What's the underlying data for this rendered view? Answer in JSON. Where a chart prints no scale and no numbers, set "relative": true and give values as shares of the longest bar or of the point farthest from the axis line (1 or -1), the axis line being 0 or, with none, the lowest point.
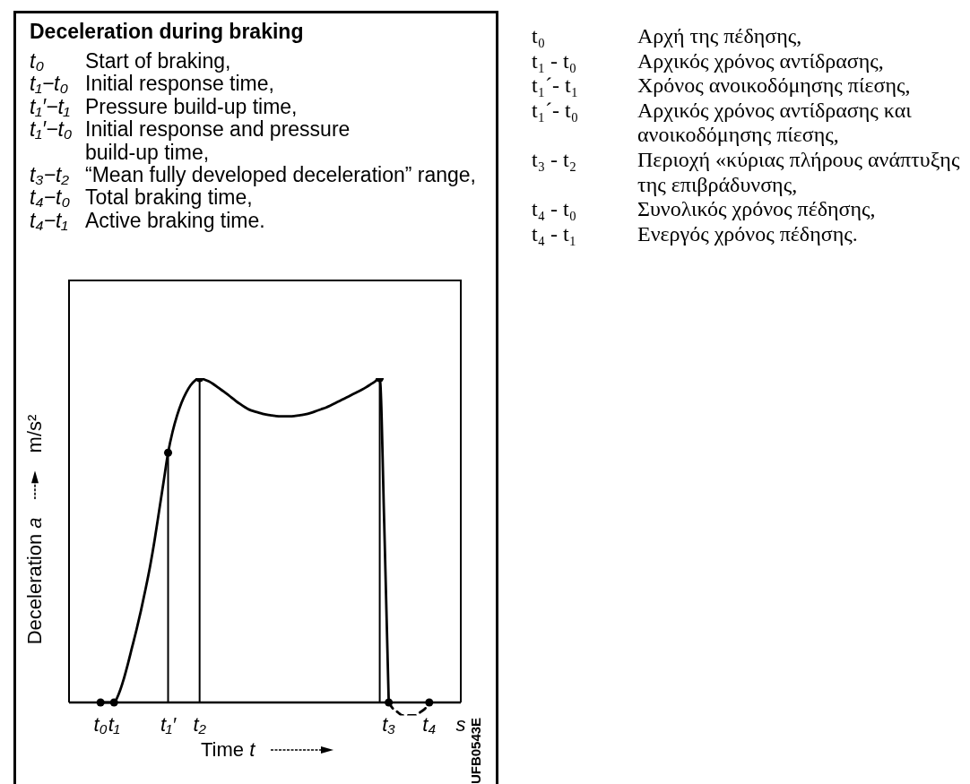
{
  "chart_data": {
    "type": "line",
    "relative": true,
    "title": "Deceleration during braking",
    "xlabel": "Time t",
    "ylabel": "Deceleration a",
    "categories": [
      null,
      null,
      null,
      null,
      null,
      null,
      null,
      "t₀",
      null,
      null,
      "t₁",
      null,
      null,
      null,
      null,
      null,
      null,
      null,
      null,
      null,
      null,
      null,
      "t₁′",
      null,
      null,
      null,
      null,
      null,
      null,
      "t₂",
      null,
      null,
      null,
      null,
      null,
      null,
      null,
      null,
      null,
      null,
      null,
      null,
      null,
      null,
      null,
      null,
      null,
      null,
      null,
      null,
      null,
      null,
      null,
      null,
      null,
      null,
      null,
      null,
      null,
      null,
      null,
      null,
      null,
      null,
      null,
      null,
      null,
      null,
      null,
      null,
      null,
      "t₃",
      null,
      null,
      null,
      null,
      null,
      null,
      null,
      null,
      "t₄",
      null,
      null,
      null,
      null,
      null,
      null,
      "s"
    ],
    "series": [
      {
        "color": "#000000",
        "line_style": "solid",
        "values": [
          null,
          null,
          null,
          null,
          null,
          null,
          null,
          0,
          0,
          0,
          0,
          0.025,
          0.065,
          0.115,
          0.17,
          0.225,
          0.285,
          0.35,
          0.42,
          0.5,
          0.59,
          0.68,
          0.77,
          0.835,
          0.885,
          0.925,
          0.955,
          0.978,
          0.993,
          1,
          0.996,
          0.99,
          0.982,
          0.972,
          0.962,
          0.952,
          0.941,
          0.93,
          0.92,
          0.911,
          0.903,
          0.898,
          0.894,
          0.89,
          0.887,
          0.885,
          0.883,
          0.882,
          0.882,
          0.882,
          0.883,
          0.885,
          0.887,
          0.89,
          0.894,
          0.899,
          0.904,
          0.909,
          0.915,
          0.922,
          0.929,
          0.936,
          0.943,
          0.95,
          0.957,
          0.964,
          0.972,
          0.981,
          0.99,
          1,
          0.55,
          0,
          null,
          null,
          null,
          null,
          null,
          null,
          null,
          null,
          null,
          null,
          null,
          null,
          null,
          null,
          null,
          null
        ]
      },
      {
        "color": "#000000",
        "line_style": "dashed",
        "values": [
          null,
          null,
          null,
          null,
          null,
          null,
          null,
          null,
          null,
          null,
          null,
          null,
          null,
          null,
          null,
          null,
          null,
          null,
          null,
          null,
          null,
          null,
          null,
          null,
          null,
          null,
          null,
          null,
          null,
          null,
          null,
          null,
          null,
          null,
          null,
          null,
          null,
          null,
          null,
          null,
          null,
          null,
          null,
          null,
          null,
          null,
          null,
          null,
          null,
          null,
          null,
          null,
          null,
          null,
          null,
          null,
          null,
          null,
          null,
          null,
          null,
          null,
          null,
          null,
          null,
          null,
          null,
          null,
          null,
          null,
          null,
          0,
          -0.02,
          -0.03,
          -0.04,
          -0.04,
          -0.04,
          -0.04,
          -0.03,
          -0.02,
          0,
          null,
          null,
          null,
          null,
          null,
          null,
          null
        ]
      },
      {
        "type": "lollipop",
        "color": "#000000",
        "marker": "circle",
        "values": [
          null,
          null,
          null,
          null,
          null,
          null,
          null,
          0,
          null,
          null,
          0,
          null,
          null,
          null,
          null,
          null,
          null,
          null,
          null,
          null,
          null,
          null,
          0.77,
          null,
          null,
          null,
          null,
          null,
          null,
          1,
          null,
          null,
          null,
          null,
          null,
          null,
          null,
          null,
          null,
          null,
          null,
          null,
          null,
          null,
          null,
          null,
          null,
          null,
          null,
          null,
          null,
          null,
          null,
          null,
          null,
          null,
          null,
          null,
          null,
          null,
          null,
          null,
          null,
          null,
          null,
          null,
          null,
          null,
          null,
          1,
          null,
          0,
          null,
          null,
          null,
          null,
          null,
          null,
          null,
          null,
          0,
          null,
          null,
          null,
          null,
          null,
          null,
          null
        ]
      }
    ],
    "annotations": [
      "m/s²",
      "t₀\tStart of braking,",
      "t₁−t₀\tInitial response time,",
      "t₁′−t₁\tPressure build-up time,",
      "t₁′−t₀\tInitial response and pressure\nbuild-up time,",
      "t₃−t₂\t“Mean fully developed deceleration” range,",
      "t₄−t₀\tTotal braking time,",
      "t₄−t₁\tActive braking time.",
      "t₀\tΑρχή της πέδησης,",
      "t₁ - t₀\tΑρχικός χρόνος αντίδρασης,",
      "t₁´- t₁\tΧρόνος ανοικοδόμησης πίεσης,",
      "t₁´- t₀\tΑρχικός χρόνος αντίδρασης και\nανοικοδόμησης πίεσης,",
      "t₃ - t₂\tΠεριοχή «κύριας πλήρους ανάπτυξης\nτης επιβράδυνσης,",
      "t₄ - t₀\tΣυνολικός χρόνος πέδησης,",
      "t₄ - t₁\tΕνεργός χρόνος πέδησης.",
      "UFB0543E"
    ]
  }
}
